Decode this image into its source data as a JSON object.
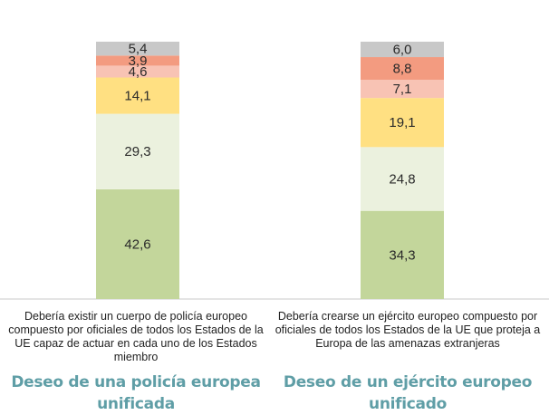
{
  "chart_data": {
    "type": "bar",
    "stacked": true,
    "ylim": [
      0,
      100
    ],
    "colors": {
      "s1": "#c3d69b",
      "s2": "#ebf1de",
      "s3": "#ffe082",
      "s4": "#f8c3b4",
      "s5": "#f39b80",
      "s6": "#c8c8c8"
    },
    "stacks": [
      {
        "description": "Debería existir un cuerpo de policía europeo compuesto por oficiales de todos los Estados de la UE capaz de actuar en cada uno de los Estados miembro",
        "heading": "Deseo de una policía europea unificada",
        "segments": [
          {
            "value": 42.6,
            "label": "42,6",
            "color_key": "s1"
          },
          {
            "value": 29.3,
            "label": "29,3",
            "color_key": "s2"
          },
          {
            "value": 14.1,
            "label": "14,1",
            "color_key": "s3"
          },
          {
            "value": 4.6,
            "label": "4,6",
            "color_key": "s4"
          },
          {
            "value": 3.9,
            "label": "3,9",
            "color_key": "s5"
          },
          {
            "value": 5.4,
            "label": "5,4",
            "color_key": "s6"
          }
        ]
      },
      {
        "description": "Debería crearse un ejército europeo compuesto por oficiales de todos los Estados de la UE que proteja a Europa de las amenazas extranjeras",
        "heading": "Deseo de un ejército europeo unificado",
        "segments": [
          {
            "value": 34.3,
            "label": "34,3",
            "color_key": "s1"
          },
          {
            "value": 24.8,
            "label": "24,8",
            "color_key": "s2"
          },
          {
            "value": 19.1,
            "label": "19,1",
            "color_key": "s3"
          },
          {
            "value": 7.1,
            "label": "7,1",
            "color_key": "s4"
          },
          {
            "value": 8.8,
            "label": "8,8",
            "color_key": "s5"
          },
          {
            "value": 6.0,
            "label": "6,0",
            "color_key": "s6"
          }
        ]
      }
    ]
  }
}
